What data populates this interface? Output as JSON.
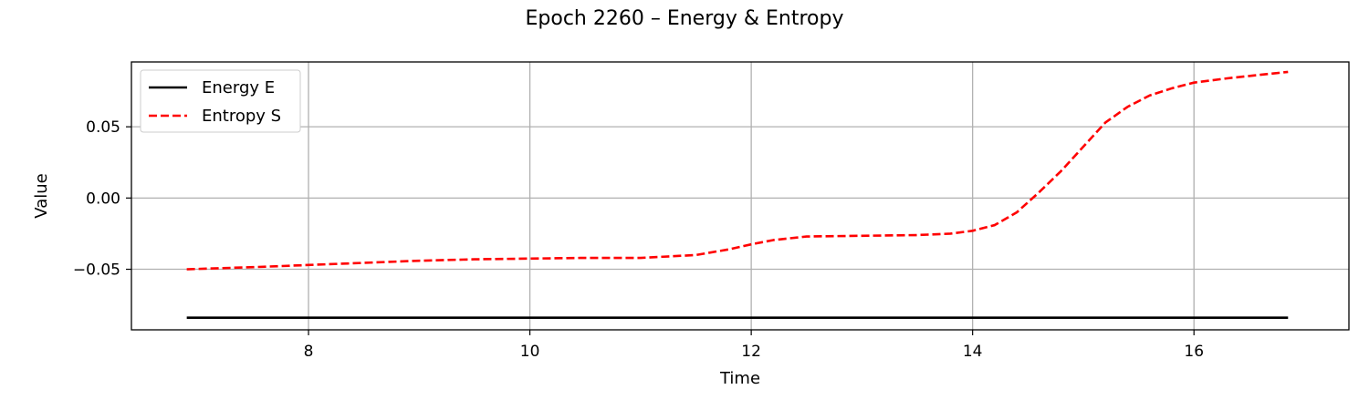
{
  "chart_data": {
    "type": "line",
    "title": "Epoch 2260 – Energy & Entropy",
    "xlabel": "Time",
    "ylabel": "Value",
    "xlim": [
      6.4,
      17.4
    ],
    "ylim": [
      -0.0925,
      0.0955
    ],
    "xticks": [
      8,
      10,
      12,
      14,
      16
    ],
    "xtick_labels": [
      "8",
      "10",
      "12",
      "14",
      "16"
    ],
    "yticks": [
      -0.05,
      0.0,
      0.05
    ],
    "ytick_labels": [
      "−0.05",
      "0.00",
      "0.05"
    ],
    "grid": true,
    "legend_position": "top-left",
    "series": [
      {
        "name": "Energy E",
        "color": "#000000",
        "style": "solid",
        "x": [
          6.9,
          16.85
        ],
        "y": [
          -0.084,
          -0.084
        ]
      },
      {
        "name": "Entropy S",
        "color": "#ff0000",
        "style": "dashed",
        "x": [
          6.9,
          7.5,
          8.0,
          8.5,
          9.0,
          9.5,
          10.0,
          10.5,
          11.0,
          11.5,
          11.8,
          12.0,
          12.2,
          12.5,
          13.0,
          13.5,
          13.8,
          14.0,
          14.2,
          14.4,
          14.6,
          14.8,
          15.0,
          15.2,
          15.4,
          15.6,
          15.8,
          16.0,
          16.3,
          16.6,
          16.85
        ],
        "y": [
          -0.05,
          -0.0485,
          -0.047,
          -0.0455,
          -0.044,
          -0.043,
          -0.0425,
          -0.042,
          -0.042,
          -0.04,
          -0.036,
          -0.0325,
          -0.0295,
          -0.027,
          -0.0265,
          -0.026,
          -0.025,
          -0.023,
          -0.019,
          -0.01,
          0.004,
          0.019,
          0.036,
          0.053,
          0.064,
          0.072,
          0.077,
          0.081,
          0.084,
          0.0865,
          0.0885
        ]
      }
    ]
  }
}
